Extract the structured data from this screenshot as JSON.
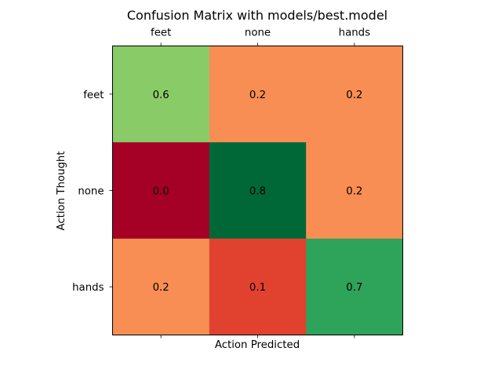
{
  "chart_data": {
    "type": "heatmap",
    "title": "Confusion Matrix with models/best.model",
    "xlabel": "Action Predicted",
    "ylabel": "Action Thought",
    "x_categories": [
      "feet",
      "none",
      "hands"
    ],
    "y_categories": [
      "feet",
      "none",
      "hands"
    ],
    "x_tick_position": "top",
    "colormap": "RdYlGn",
    "value_range": [
      0.0,
      0.8
    ],
    "grid": false,
    "values": [
      [
        0.6,
        0.2,
        0.2
      ],
      [
        0.0,
        0.8,
        0.2
      ],
      [
        0.2,
        0.1,
        0.7
      ]
    ],
    "cell_labels": [
      [
        "0.6",
        "0.2",
        "0.2"
      ],
      [
        "0.0",
        "0.8",
        "0.2"
      ],
      [
        "0.2",
        "0.1",
        "0.7"
      ]
    ],
    "cell_colors": [
      [
        "#89cc67",
        "#f88e53",
        "#f88e53"
      ],
      [
        "#a50026",
        "#006837",
        "#f88e53"
      ],
      [
        "#f88e53",
        "#e0422f",
        "#2ea35a"
      ]
    ]
  }
}
